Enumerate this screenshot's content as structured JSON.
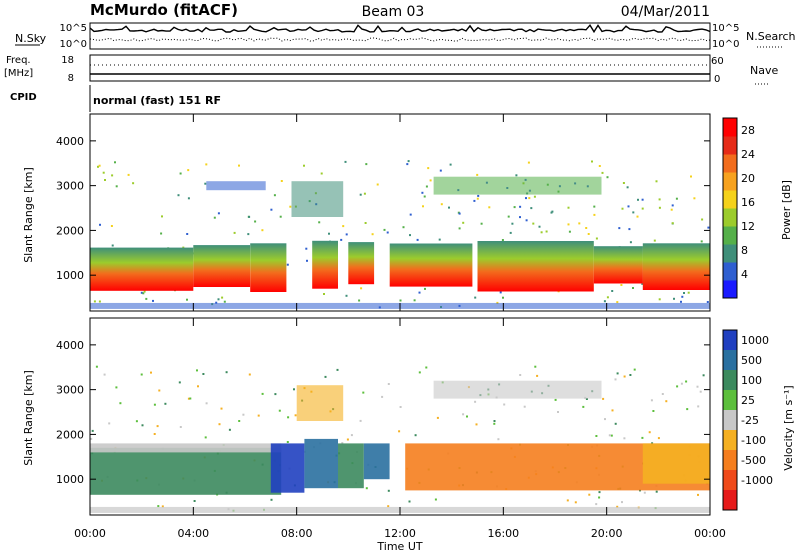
{
  "header": {
    "station": "McMurdo (fitACF)",
    "beam": "Beam 03",
    "date": "04/Mar/2011"
  },
  "noise_panel": {
    "left_label": "N.Sky",
    "right_label": "N.Search",
    "ticks_left": [
      "10^5",
      "10^0"
    ],
    "ticks_right": [
      "10^5",
      "10^0"
    ]
  },
  "freq_panel": {
    "left_label_line1": "Freq.",
    "left_label_line2": "[MHz]",
    "ticks_left": [
      "18",
      "8"
    ],
    "right_label": "Nave",
    "ticks_right": [
      "60",
      "0"
    ]
  },
  "cpid": {
    "label": "CPID",
    "text": "normal (fast) 151 RF"
  },
  "chart_data": [
    {
      "type": "heatmap",
      "title": "",
      "ylabel": "Slant Range [km]",
      "xlabel": "",
      "y_ticks": [
        "1000",
        "2000",
        "3000",
        "4000"
      ],
      "ylim": [
        200,
        4600
      ],
      "x_range_hours": [
        0,
        24
      ],
      "colorbar": {
        "label": "Power [dB]",
        "ticks": [
          "4",
          "8",
          "12",
          "16",
          "20",
          "24",
          "28"
        ],
        "range": [
          0,
          30
        ],
        "colors": [
          "#1a1aff",
          "#2f5fd0",
          "#3f8f7a",
          "#55b04a",
          "#9ccc2c",
          "#f5d21b",
          "#f7a21f",
          "#f26d1d",
          "#e62b18",
          "#ff0000"
        ]
      },
      "main_band_segments_hours": [
        [
          0.0,
          4.0
        ],
        [
          4.0,
          6.2
        ],
        [
          6.2,
          7.6
        ],
        [
          8.6,
          9.6
        ],
        [
          10.0,
          11.0
        ],
        [
          11.6,
          14.8
        ],
        [
          15.0,
          19.5
        ],
        [
          19.5,
          21.4
        ],
        [
          21.4,
          24.0
        ]
      ]
    },
    {
      "type": "heatmap",
      "title": "",
      "ylabel": "Slant Range [km]",
      "xlabel": "Time UT",
      "y_ticks": [
        "1000",
        "2000",
        "3000",
        "4000"
      ],
      "ylim": [
        200,
        4600
      ],
      "x_range_hours": [
        0,
        24
      ],
      "x_ticks": [
        "00:00",
        "04:00",
        "08:00",
        "12:00",
        "16:00",
        "20:00",
        "00:00"
      ],
      "colorbar": {
        "label": "Velocity [m s⁻¹]",
        "ticks": [
          "1000",
          "500",
          "100",
          "25",
          "-25",
          "-100",
          "-500",
          "-1000"
        ],
        "colors": [
          "#2040c0",
          "#2a70a0",
          "#3c8a5e",
          "#5cbf3c",
          "#c8c8c8",
          "#f5b022",
          "#f57e1e",
          "#ef4a19",
          "#e61a1a"
        ]
      }
    }
  ]
}
